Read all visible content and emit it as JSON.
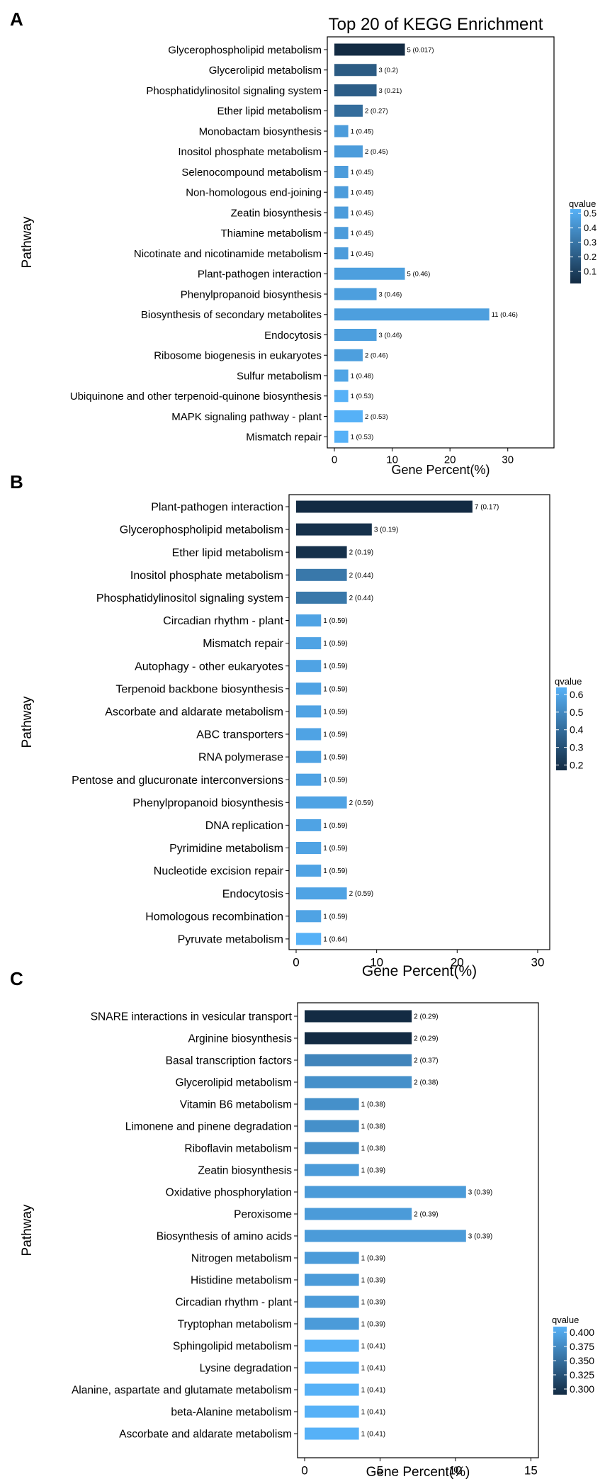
{
  "chart_data": [
    {
      "panel_label": "A",
      "type": "bar",
      "orientation": "horizontal",
      "title": "Top 20 of KEGG Enrichment",
      "xlabel": "Gene Percent(%)",
      "ylabel": "Pathway",
      "xlim": [
        0,
        38
      ],
      "xticks": [
        "0",
        "10",
        "20",
        "30"
      ],
      "legend_title": "qvalue",
      "legend_ticks": [
        "0.5",
        "0.4",
        "0.3",
        "0.2",
        "0.1"
      ],
      "legend_range": [
        0.017,
        0.53
      ],
      "categories": [
        "Glycerophospholipid metabolism",
        "Glycerolipid metabolism",
        "Phosphatidylinositol signaling system",
        "Ether lipid metabolism",
        "Monobactam biosynthesis",
        "Inositol phosphate metabolism",
        "Selenocompound metabolism",
        "Non-homologous end-joining",
        "Zeatin biosynthesis",
        "Thiamine metabolism",
        "Nicotinate and nicotinamide metabolism",
        "Plant-pathogen interaction",
        "Phenylpropanoid biosynthesis",
        "Biosynthesis of secondary metabolites",
        "Endocytosis",
        "Ribosome biogenesis in eukaryotes",
        "Sulfur metabolism",
        "Ubiquinone and other terpenoid-quinone biosynthesis",
        "MAPK signaling pathway - plant",
        "Mismatch repair"
      ],
      "values": [
        12.2,
        7.3,
        7.3,
        4.9,
        2.4,
        4.9,
        2.4,
        2.4,
        2.4,
        2.4,
        2.4,
        12.2,
        7.3,
        26.8,
        7.3,
        4.9,
        2.4,
        2.4,
        4.9,
        2.4
      ],
      "qvalues": [
        0.017,
        0.2,
        0.21,
        0.27,
        0.45,
        0.45,
        0.45,
        0.45,
        0.45,
        0.45,
        0.45,
        0.46,
        0.46,
        0.46,
        0.46,
        0.46,
        0.48,
        0.53,
        0.53,
        0.53
      ],
      "bar_labels": [
        "5 (0.017)",
        "3 (0.2)",
        "3 (0.21)",
        "2 (0.27)",
        "1 (0.45)",
        "2 (0.45)",
        "1 (0.45)",
        "1 (0.45)",
        "1 (0.45)",
        "1 (0.45)",
        "1 (0.45)",
        "5 (0.46)",
        "3 (0.46)",
        "11 (0.46)",
        "3 (0.46)",
        "2 (0.46)",
        "1 (0.48)",
        "1 (0.53)",
        "2 (0.53)",
        "1 (0.53)"
      ]
    },
    {
      "panel_label": "B",
      "type": "bar",
      "orientation": "horizontal",
      "title": "",
      "xlabel": "Gene Percent(%)",
      "ylabel": "Pathway",
      "xlim": [
        0,
        31.5
      ],
      "xticks": [
        "0",
        "10",
        "20",
        "30"
      ],
      "legend_title": "qvalue",
      "legend_ticks": [
        "0.6",
        "0.5",
        "0.4",
        "0.3",
        "0.2"
      ],
      "legend_range": [
        0.17,
        0.64
      ],
      "categories": [
        "Plant-pathogen interaction",
        "Glycerophospholipid metabolism",
        "Ether lipid metabolism",
        "Inositol phosphate metabolism",
        "Phosphatidylinositol signaling system",
        "Circadian rhythm - plant",
        "Mismatch repair",
        "Autophagy - other eukaryotes",
        "Terpenoid backbone biosynthesis",
        "Ascorbate and aldarate metabolism",
        "ABC transporters",
        "RNA polymerase",
        "Pentose and glucuronate interconversions",
        "Phenylpropanoid biosynthesis",
        "DNA replication",
        "Pyrimidine metabolism",
        "Nucleotide excision repair",
        "Endocytosis",
        "Homologous recombination",
        "Pyruvate metabolism"
      ],
      "values": [
        21.9,
        9.4,
        6.3,
        6.3,
        6.3,
        3.1,
        3.1,
        3.1,
        3.1,
        3.1,
        3.1,
        3.1,
        3.1,
        6.3,
        3.1,
        3.1,
        3.1,
        6.3,
        3.1,
        3.1
      ],
      "qvalues": [
        0.17,
        0.19,
        0.19,
        0.44,
        0.44,
        0.59,
        0.59,
        0.59,
        0.59,
        0.59,
        0.59,
        0.59,
        0.59,
        0.59,
        0.59,
        0.59,
        0.59,
        0.59,
        0.59,
        0.64
      ],
      "bar_labels": [
        "7 (0.17)",
        "3 (0.19)",
        "2 (0.19)",
        "2 (0.44)",
        "2 (0.44)",
        "1 (0.59)",
        "1 (0.59)",
        "1 (0.59)",
        "1 (0.59)",
        "1 (0.59)",
        "1 (0.59)",
        "1 (0.59)",
        "1 (0.59)",
        "2 (0.59)",
        "1 (0.59)",
        "1 (0.59)",
        "1 (0.59)",
        "2 (0.59)",
        "1 (0.59)",
        "1 (0.64)"
      ]
    },
    {
      "panel_label": "C",
      "type": "bar",
      "orientation": "horizontal",
      "title": "",
      "xlabel": "Gene Percent(%)",
      "ylabel": "Pathway",
      "xlim": [
        0,
        15.5
      ],
      "xticks": [
        "0",
        "5",
        "10",
        "15"
      ],
      "legend_title": "qvalue",
      "legend_ticks": [
        "0.400",
        "0.375",
        "0.350",
        "0.325",
        "0.300"
      ],
      "legend_range": [
        0.29,
        0.41
      ],
      "categories": [
        "SNARE interactions in vesicular transport",
        "Arginine biosynthesis",
        "Basal transcription factors",
        "Glycerolipid metabolism",
        "Vitamin B6 metabolism",
        "Limonene and pinene degradation",
        "Riboflavin metabolism",
        "Zeatin biosynthesis",
        "Oxidative phosphorylation",
        "Peroxisome",
        "Biosynthesis of amino acids",
        "Nitrogen metabolism",
        "Histidine metabolism",
        "Circadian rhythm - plant",
        "Tryptophan metabolism",
        "Sphingolipid metabolism",
        "Lysine degradation",
        "Alanine, aspartate and glutamate metabolism",
        "beta-Alanine metabolism",
        "Ascorbate and aldarate metabolism"
      ],
      "values": [
        7.1,
        7.1,
        7.1,
        7.1,
        3.6,
        3.6,
        3.6,
        3.6,
        10.7,
        7.1,
        10.7,
        3.6,
        3.6,
        3.6,
        3.6,
        3.6,
        3.6,
        3.6,
        3.6,
        3.6
      ],
      "qvalues": [
        0.29,
        0.29,
        0.37,
        0.38,
        0.38,
        0.38,
        0.38,
        0.39,
        0.39,
        0.39,
        0.39,
        0.39,
        0.39,
        0.39,
        0.39,
        0.41,
        0.41,
        0.41,
        0.41,
        0.41
      ],
      "bar_labels": [
        "2 (0.29)",
        "2 (0.29)",
        "2 (0.37)",
        "2 (0.38)",
        "1 (0.38)",
        "1 (0.38)",
        "1 (0.38)",
        "1 (0.39)",
        "3 (0.39)",
        "2 (0.39)",
        "3 (0.39)",
        "1 (0.39)",
        "1 (0.39)",
        "1 (0.39)",
        "1 (0.39)",
        "1 (0.41)",
        "1 (0.41)",
        "1 (0.41)",
        "1 (0.41)",
        "1 (0.41)"
      ]
    }
  ],
  "colors": {
    "low": "#132b43",
    "high": "#56b1f7",
    "axis": "#000000",
    "text": "#000000"
  }
}
